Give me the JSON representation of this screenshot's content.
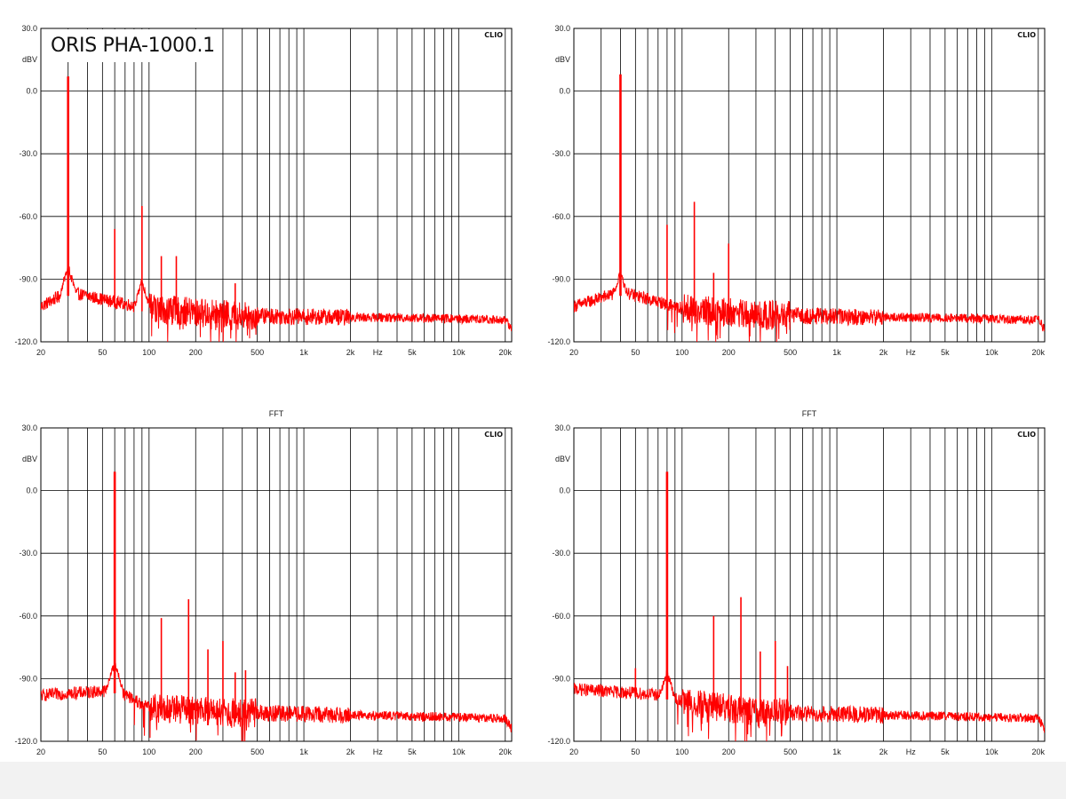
{
  "page": {
    "title": "ORIS PHA-1000.1"
  },
  "colors": {
    "trace": "#ff0000",
    "grid": "#000000",
    "background": "#ffffff",
    "footer": "#f2f2f2"
  },
  "axes": {
    "x_scale": "log",
    "x_range": [
      20,
      22000
    ],
    "x_tick_values": [
      20,
      50,
      100,
      200,
      500,
      1000,
      2000,
      5000,
      10000,
      20000
    ],
    "x_tick_labels": [
      "20",
      "50",
      "100",
      "200",
      "500",
      "1k",
      "2k",
      "5k",
      "10k",
      "20k"
    ],
    "x_unit_label": "Hz",
    "y_range": [
      -120,
      30
    ],
    "y_tick_values": [
      30,
      0,
      -30,
      -60,
      -90,
      -120
    ],
    "y_tick_labels": [
      "30.0",
      "0.0",
      "-30.0",
      "-60.0",
      "-90.0",
      "-120.0"
    ],
    "y_unit_label": "dBV",
    "watermark": "CLIO",
    "grid": true
  },
  "chart_data": [
    {
      "type": "line",
      "title": "",
      "fundamental_hz": 30,
      "peaks": [
        [
          30,
          7
        ],
        [
          60,
          -66
        ],
        [
          90,
          -55
        ],
        [
          120,
          -79
        ],
        [
          150,
          -79
        ],
        [
          360,
          -92
        ]
      ],
      "noise_floor": [
        [
          20,
          -103
        ],
        [
          30,
          -96
        ],
        [
          60,
          -101
        ],
        [
          100,
          -104
        ],
        [
          300,
          -107
        ],
        [
          1000,
          -108
        ],
        [
          5000,
          -108.5
        ],
        [
          20000,
          -109.5
        ],
        [
          22000,
          -114
        ]
      ],
      "skirt": [
        [
          30,
          -84
        ],
        [
          90,
          -91
        ]
      ]
    },
    {
      "type": "line",
      "title": "",
      "fundamental_hz": 40,
      "peaks": [
        [
          40,
          8
        ],
        [
          80,
          -64
        ],
        [
          120,
          -53
        ],
        [
          160,
          -87
        ],
        [
          200,
          -73
        ]
      ],
      "noise_floor": [
        [
          20,
          -103
        ],
        [
          40,
          -96
        ],
        [
          80,
          -102
        ],
        [
          100,
          -104
        ],
        [
          300,
          -107
        ],
        [
          1000,
          -108
        ],
        [
          5000,
          -108.5
        ],
        [
          20000,
          -109.5
        ],
        [
          22000,
          -114
        ]
      ],
      "skirt": [
        [
          40,
          -87
        ]
      ]
    },
    {
      "type": "line",
      "title": "FFT",
      "fundamental_hz": 60,
      "peaks": [
        [
          60,
          9
        ],
        [
          120,
          -61
        ],
        [
          180,
          -52
        ],
        [
          240,
          -76
        ],
        [
          300,
          -72
        ],
        [
          360,
          -87
        ],
        [
          420,
          -86
        ]
      ],
      "noise_floor": [
        [
          20,
          -98
        ],
        [
          50,
          -96
        ],
        [
          60,
          -95
        ],
        [
          100,
          -104
        ],
        [
          300,
          -106
        ],
        [
          1000,
          -107
        ],
        [
          5000,
          -108
        ],
        [
          20000,
          -109
        ],
        [
          22000,
          -114
        ]
      ],
      "skirt": [
        [
          60,
          -82
        ]
      ]
    },
    {
      "type": "line",
      "title": "FFT",
      "fundamental_hz": 80,
      "peaks": [
        [
          50,
          -85
        ],
        [
          80,
          9
        ],
        [
          160,
          -60
        ],
        [
          240,
          -51
        ],
        [
          320,
          -77
        ],
        [
          400,
          -72
        ],
        [
          480,
          -84
        ]
      ],
      "noise_floor": [
        [
          20,
          -95
        ],
        [
          80,
          -98
        ],
        [
          100,
          -101
        ],
        [
          300,
          -106
        ],
        [
          1000,
          -107
        ],
        [
          5000,
          -108
        ],
        [
          20000,
          -109
        ],
        [
          22000,
          -114
        ]
      ],
      "skirt": [
        [
          80,
          -87
        ]
      ]
    }
  ]
}
